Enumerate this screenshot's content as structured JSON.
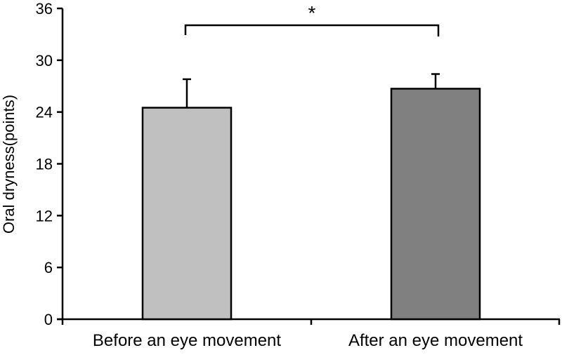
{
  "chart_data": {
    "type": "bar",
    "title": "",
    "xlabel": "",
    "ylabel": "Oral dryness(points)",
    "ylim": [
      0,
      36
    ],
    "yticks": [
      0,
      6,
      12,
      18,
      24,
      30,
      36
    ],
    "grid": false,
    "categories": [
      "Before an eye movement",
      "After an eye movement"
    ],
    "values": [
      24.5,
      26.7
    ],
    "error_upper": [
      27.8,
      28.4
    ],
    "bar_colors": [
      "#c0c0c0",
      "#808080"
    ],
    "annotations": [
      {
        "type": "significance-bracket",
        "from": "Before an eye movement",
        "to": "After an eye movement",
        "label": "*"
      }
    ]
  },
  "axis": {
    "ylabel": "Oral dryness(points)",
    "yticks": [
      "0",
      "6",
      "12",
      "18",
      "24",
      "30",
      "36"
    ]
  },
  "bars": [
    {
      "label": "Before an eye movement",
      "value": 24.5,
      "err_top": 27.8,
      "color": "#c0c0c0"
    },
    {
      "label": "After an eye movement",
      "value": 26.7,
      "err_top": 28.4,
      "color": "#808080"
    }
  ],
  "significance": {
    "label": "*"
  }
}
